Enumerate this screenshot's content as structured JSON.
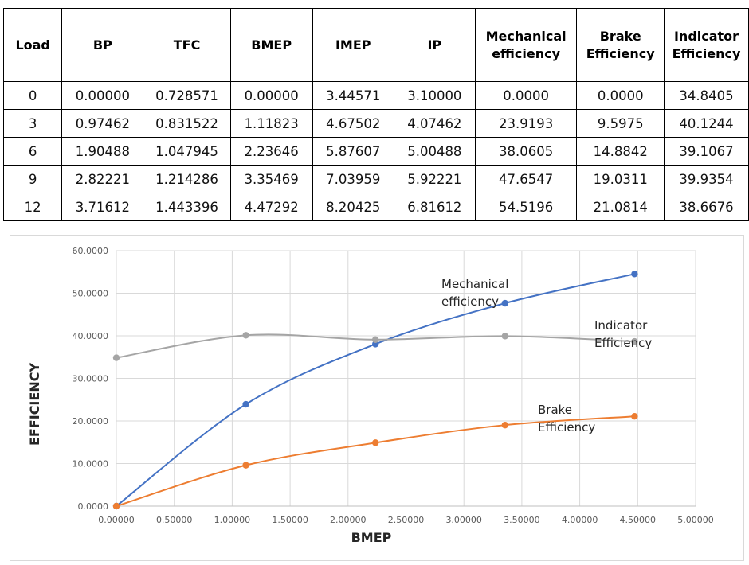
{
  "table": {
    "headers": [
      "Load",
      "BP",
      "TFC",
      "BMEP",
      "IMEP",
      "IP",
      "Mechanical|efficiency",
      "Brake|Efficiency",
      "Indicator|Efficiency"
    ],
    "rows": [
      [
        "0",
        "0.00000",
        "0.728571",
        "0.00000",
        "3.44571",
        "3.10000",
        "0.0000",
        "0.0000",
        "34.8405"
      ],
      [
        "3",
        "0.97462",
        "0.831522",
        "1.11823",
        "4.67502",
        "4.07462",
        "23.9193",
        "9.5975",
        "40.1244"
      ],
      [
        "6",
        "1.90488",
        "1.047945",
        "2.23646",
        "5.87607",
        "5.00488",
        "38.0605",
        "14.8842",
        "39.1067"
      ],
      [
        "9",
        "2.82221",
        "1.214286",
        "3.35469",
        "7.03959",
        "5.92221",
        "47.6547",
        "19.0311",
        "39.9354"
      ],
      [
        "12",
        "3.71612",
        "1.443396",
        "4.47292",
        "8.20425",
        "6.81612",
        "54.5196",
        "21.0814",
        "38.6676"
      ]
    ]
  },
  "chart_data": {
    "type": "line",
    "x": [
      0.0,
      1.11823,
      2.23646,
      3.35469,
      4.47292
    ],
    "series": [
      {
        "name": "Mechanical efficiency",
        "label_lines": [
          "Mechanical",
          "efficiency"
        ],
        "color": "#4472C4",
        "values": [
          0.0,
          23.9193,
          38.0605,
          47.6547,
          54.5196
        ]
      },
      {
        "name": "Indicator Efficiency",
        "label_lines": [
          "Indicator",
          "Efficiency"
        ],
        "color": "#A5A5A5",
        "values": [
          34.8405,
          40.1244,
          39.1067,
          39.9354,
          38.6676
        ]
      },
      {
        "name": "Brake Efficiency",
        "label_lines": [
          "Brake",
          "Efficiency"
        ],
        "color": "#ED7D31",
        "values": [
          0.0,
          9.5975,
          14.8842,
          19.0311,
          21.0814
        ]
      }
    ],
    "xlabel": "BMEP",
    "ylabel": "EFFICIENCY",
    "xlim": [
      0,
      5
    ],
    "ylim": [
      0,
      60
    ],
    "xticks": [
      "0.00000",
      "0.50000",
      "1.00000",
      "1.50000",
      "2.00000",
      "2.50000",
      "3.00000",
      "3.50000",
      "4.00000",
      "4.50000",
      "5.00000"
    ],
    "yticks": [
      "0.0000",
      "10.0000",
      "20.0000",
      "30.0000",
      "40.0000",
      "50.0000",
      "60.0000"
    ],
    "grid": true,
    "smooth": true,
    "legend": "inline labels"
  }
}
